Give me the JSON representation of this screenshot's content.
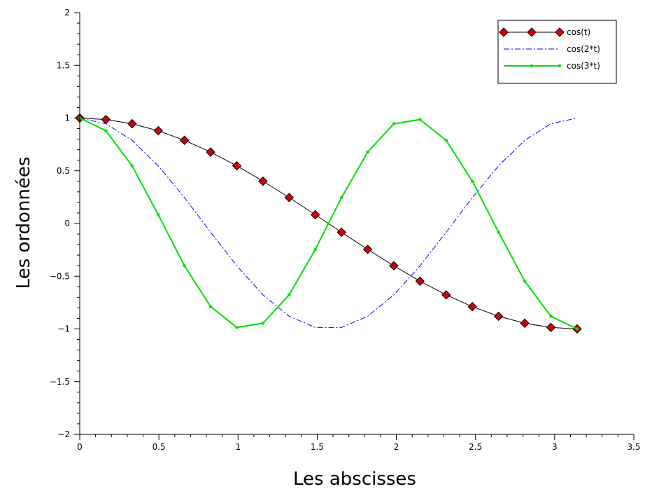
{
  "chart_data": {
    "type": "line",
    "title": "",
    "xlabel": "Les abscisses",
    "ylabel": "Les ordonnées",
    "xlim": [
      0,
      3.5
    ],
    "ylim": [
      -2,
      2
    ],
    "x_ticks": [
      "0",
      "0.5",
      "1",
      "1.5",
      "2",
      "2.5",
      "3",
      "3.5"
    ],
    "y_ticks": [
      "2",
      "1.5",
      "1",
      "0.5",
      "0",
      "-0.5",
      "-1",
      "-1.5",
      "-2"
    ],
    "grid": false,
    "legend_position": "top-right",
    "x": [
      0,
      0.1653,
      0.3307,
      0.496,
      0.6614,
      0.8267,
      0.9921,
      1.1574,
      1.3228,
      1.4881,
      1.6535,
      1.8188,
      1.9842,
      2.1495,
      2.3149,
      2.4802,
      2.6456,
      2.8109,
      2.9762,
      3.1416
    ],
    "series": [
      {
        "name": "cos(t)",
        "color": "#000000",
        "marker_color": "#d40000",
        "marker": "diamond",
        "line_style": "solid",
        "values": [
          1,
          0.986,
          0.946,
          0.88,
          0.789,
          0.677,
          0.547,
          0.401,
          0.246,
          0.083,
          -0.083,
          -0.246,
          -0.401,
          -0.547,
          -0.677,
          -0.789,
          -0.88,
          -0.946,
          -0.986,
          -1
        ]
      },
      {
        "name": "cos(2*t)",
        "color": "#0000ff",
        "marker": "none",
        "line_style": "dashdot",
        "values": [
          1,
          0.946,
          0.789,
          0.547,
          0.246,
          -0.083,
          -0.401,
          -0.677,
          -0.88,
          -0.986,
          -0.986,
          -0.88,
          -0.677,
          -0.401,
          -0.083,
          0.246,
          0.547,
          0.789,
          0.946,
          1
        ]
      },
      {
        "name": "cos(3*t)",
        "color": "#00e000",
        "marker": "arrow",
        "line_style": "solid",
        "values": [
          1,
          0.88,
          0.547,
          0.083,
          -0.401,
          -0.789,
          -0.986,
          -0.946,
          -0.677,
          -0.246,
          0.246,
          0.677,
          0.946,
          0.986,
          0.789,
          0.401,
          -0.083,
          -0.547,
          -0.88,
          -1
        ]
      }
    ]
  }
}
